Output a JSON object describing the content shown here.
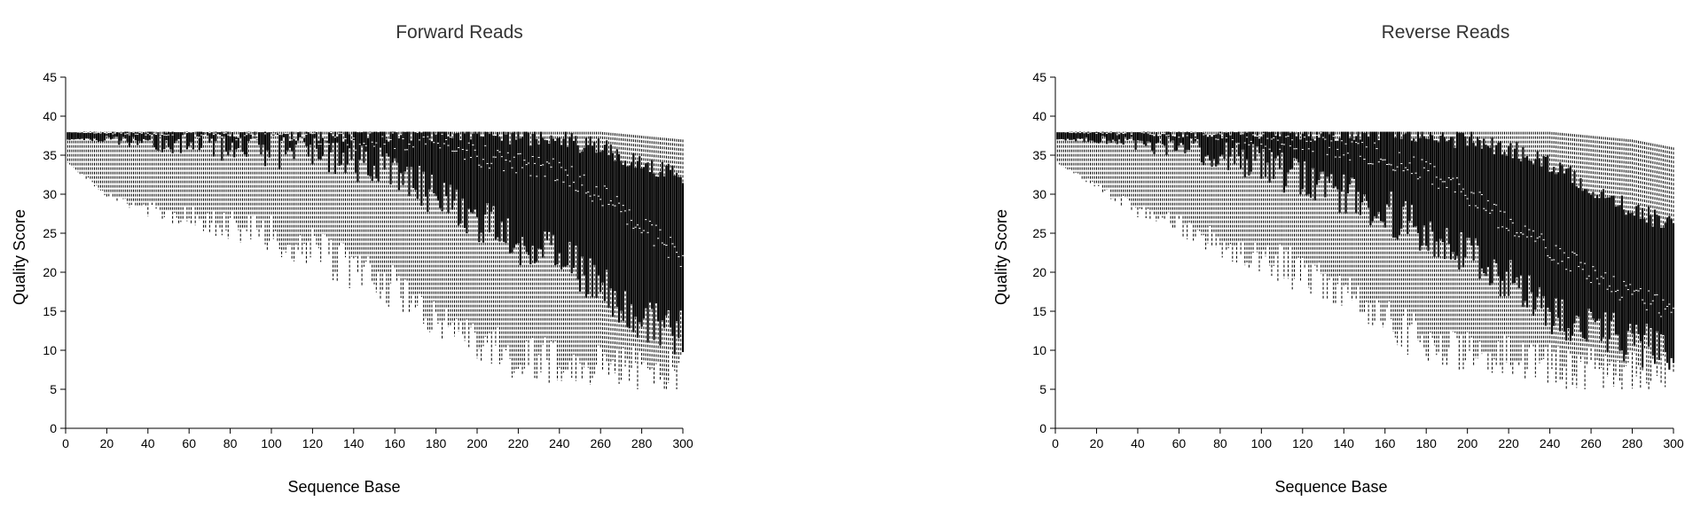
{
  "chart_data": [
    {
      "type": "box",
      "title": "Forward Reads",
      "xlabel": "Sequence Base",
      "ylabel": "Quality Score",
      "xlim": [
        0,
        300
      ],
      "ylim": [
        0,
        45
      ],
      "xticks": [
        0,
        20,
        40,
        60,
        80,
        100,
        120,
        140,
        160,
        180,
        200,
        220,
        240,
        260,
        280,
        300
      ],
      "yticks": [
        0,
        5,
        10,
        15,
        20,
        25,
        30,
        35,
        40,
        45
      ],
      "grid": false,
      "summary_anchors": {
        "position": [
          1,
          20,
          40,
          60,
          80,
          100,
          120,
          140,
          160,
          180,
          200,
          220,
          240,
          260,
          280,
          300
        ],
        "median": [
          38,
          38,
          38,
          38,
          38,
          38,
          38,
          37,
          37,
          37,
          35,
          34,
          33,
          30,
          26,
          22
        ],
        "q1": [
          37,
          37,
          36.5,
          36.5,
          36,
          36,
          35,
          34,
          33,
          30,
          27,
          24,
          22,
          18,
          14,
          12
        ],
        "q3": [
          38,
          38,
          38,
          38,
          38,
          38,
          38,
          38,
          38,
          38,
          38,
          37.5,
          37,
          36,
          34,
          32
        ],
        "lower_whisker": [
          34,
          30,
          28,
          27,
          26,
          25,
          23,
          20,
          18,
          14,
          11,
          9,
          8.5,
          8,
          7.5,
          7.5
        ],
        "upper_whisker": [
          38,
          38,
          38,
          38,
          38,
          38,
          38,
          38,
          38,
          38,
          38,
          38,
          38,
          38,
          37.5,
          37
        ]
      }
    },
    {
      "type": "box",
      "title": "Reverse Reads",
      "xlabel": "Sequence Base",
      "ylabel": "Quality Score",
      "xlim": [
        0,
        300
      ],
      "ylim": [
        0,
        45
      ],
      "xticks": [
        0,
        20,
        40,
        60,
        80,
        100,
        120,
        140,
        160,
        180,
        200,
        220,
        240,
        260,
        280,
        300
      ],
      "yticks": [
        0,
        5,
        10,
        15,
        20,
        25,
        30,
        35,
        40,
        45
      ],
      "grid": false,
      "summary_anchors": {
        "position": [
          1,
          20,
          40,
          60,
          80,
          100,
          120,
          140,
          160,
          180,
          200,
          220,
          240,
          260,
          280,
          300
        ],
        "median": [
          38,
          38,
          38,
          38,
          38,
          37,
          37,
          36,
          35,
          33,
          30,
          26,
          23,
          20,
          17,
          15
        ],
        "q1": [
          37,
          37,
          36.5,
          36,
          35,
          34,
          32,
          30,
          28,
          25,
          22,
          19,
          15,
          13,
          11,
          10
        ],
        "q3": [
          38,
          38,
          38,
          38,
          38,
          38,
          38,
          38,
          38,
          37.5,
          37,
          36,
          34,
          31,
          28,
          26
        ],
        "lower_whisker": [
          34,
          31,
          28,
          26,
          24,
          22,
          20,
          18,
          14,
          11,
          10,
          9,
          8,
          8,
          7.5,
          7.5
        ],
        "upper_whisker": [
          38,
          38,
          38,
          38,
          38,
          38,
          38,
          38,
          38,
          38,
          38,
          38,
          38,
          37.5,
          37,
          36
        ]
      }
    }
  ]
}
